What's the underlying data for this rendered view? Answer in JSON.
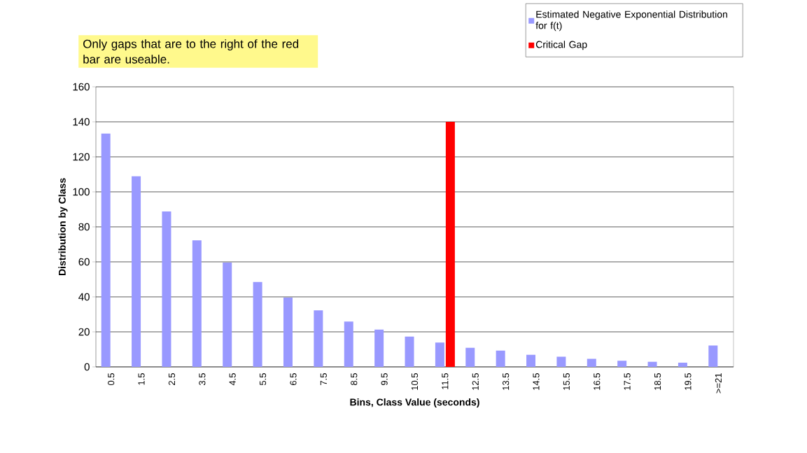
{
  "chart_data": {
    "type": "bar",
    "xlabel": "Bins, Class Value (seconds)",
    "ylabel": "Distribution by Class",
    "categories": [
      "0.5",
      "1.5",
      "2.5",
      "3.5",
      "4.5",
      "5.5",
      "6.5",
      "7.5",
      "8.5",
      "9.5",
      "10.5",
      "11.5",
      "12.5",
      "13.5",
      "14.5",
      "15.5",
      "16.5",
      "17.5",
      "18.5",
      "19.5",
      ">=21"
    ],
    "series": [
      {
        "name": "Estimated Negative Exponential Distribution for f(t)",
        "color": "#9999ff",
        "values": [
          133.3,
          108.9,
          88.8,
          72.3,
          59.6,
          48.5,
          39.6,
          32.3,
          25.9,
          21.3,
          17.3,
          13.9,
          10.9,
          9.3,
          6.9,
          5.8,
          4.6,
          3.5,
          2.9,
          2.4,
          12.2
        ]
      },
      {
        "name": "Critical Gap",
        "color": "#ff0000",
        "values": [
          null,
          null,
          null,
          null,
          null,
          null,
          null,
          null,
          null,
          null,
          null,
          140,
          null,
          null,
          null,
          null,
          null,
          null,
          null,
          null,
          null
        ]
      }
    ],
    "ylim": [
      0,
      160
    ],
    "yticks": [
      0,
      20,
      40,
      60,
      80,
      100,
      120,
      140,
      160
    ],
    "grid": "y",
    "legend": "top right",
    "annotations": [
      "Only gaps that are to the right of the red bar are useable."
    ]
  }
}
